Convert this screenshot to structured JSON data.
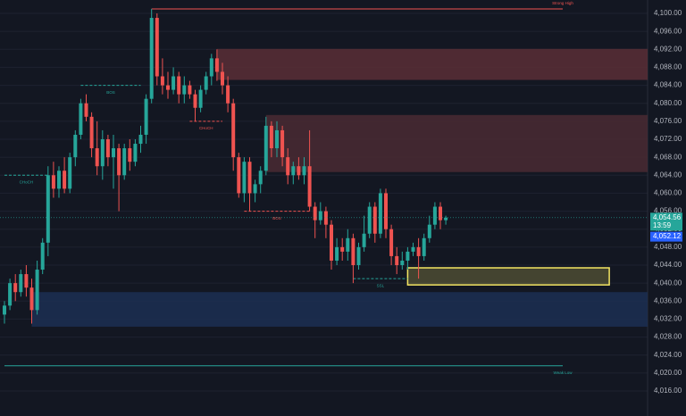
{
  "chart_data": {
    "type": "candlestick",
    "up_color": "#26a69a",
    "down_color": "#ef5350",
    "ylim": [
      4010.44,
      4102.98
    ],
    "yticks": [
      {
        "value": 4016,
        "label": "4,016.00"
      },
      {
        "value": 4020,
        "label": "4,020.00"
      },
      {
        "value": 4024,
        "label": "4,024.00"
      },
      {
        "value": 4028,
        "label": "4,028.00"
      },
      {
        "value": 4032,
        "label": "4,032.00"
      },
      {
        "value": 4036,
        "label": "4,036.00"
      },
      {
        "value": 4040,
        "label": "4,040.00"
      },
      {
        "value": 4044,
        "label": "4,044.00"
      },
      {
        "value": 4048,
        "label": "4,048.00"
      },
      {
        "value": 4052,
        "label": "4,052.00"
      },
      {
        "value": 4056,
        "label": "4,056.00"
      },
      {
        "value": 4060,
        "label": "4,060.00"
      },
      {
        "value": 4064,
        "label": "4,064.00"
      },
      {
        "value": 4068,
        "label": "4,068.00"
      },
      {
        "value": 4072,
        "label": "4,072.00"
      },
      {
        "value": 4076,
        "label": "4,076.00"
      },
      {
        "value": 4080,
        "label": "4,080.00"
      },
      {
        "value": 4084,
        "label": "4,084.00"
      },
      {
        "value": 4088,
        "label": "4,088.00"
      },
      {
        "value": 4092,
        "label": "4,092.00"
      },
      {
        "value": 4096,
        "label": "4,096.00"
      },
      {
        "value": 4100,
        "label": "4,100.00"
      }
    ],
    "grid": true,
    "open": [
      4033,
      4035,
      4040,
      4038,
      4042,
      4039,
      4034,
      4043,
      4049,
      4064,
      4061,
      4065,
      4061,
      4068,
      4073,
      4080,
      4077,
      4070,
      4066,
      4072,
      4068,
      4070,
      4064,
      4070,
      4067,
      4071,
      4073,
      4081,
      4099,
      4086,
      4084,
      4083,
      4086,
      4082,
      4084,
      4082,
      4079,
      4083,
      4086,
      4090,
      4087,
      4084,
      4080,
      4068,
      4060,
      4067,
      4060,
      4062,
      4065,
      4075,
      4070,
      4074,
      4068,
      4064,
      4066,
      4064,
      4066,
      4057,
      4054,
      4056,
      4053,
      4045,
      4048,
      4047,
      4050,
      4044,
      4048,
      4051,
      4057,
      4051,
      4060,
      4052,
      4046,
      4044,
      4045,
      4047,
      4048,
      4046,
      4050,
      4053,
      4057,
      4054
    ],
    "high": [
      4036,
      4041,
      4042,
      4043,
      4044,
      4041,
      4045,
      4050,
      4066,
      4067,
      4066,
      4068,
      4069,
      4074,
      4081,
      4082,
      4078,
      4076,
      4074,
      4073,
      4073,
      4071,
      4071,
      4072,
      4072,
      4075,
      4082,
      4101,
      4100,
      4090,
      4087,
      4088,
      4087,
      4086,
      4085,
      4083,
      4084,
      4087,
      4091,
      4092,
      4089,
      4086,
      4081,
      4069,
      4068,
      4068,
      4063,
      4066,
      4077,
      4076,
      4076,
      4075,
      4070,
      4067,
      4068,
      4068,
      4074,
      4058,
      4058,
      4057,
      4054,
      4050,
      4050,
      4052,
      4051,
      4049,
      4055,
      4058,
      4058,
      4061,
      4061,
      4053,
      4048,
      4047,
      4048,
      4049,
      4050,
      4051,
      4055,
      4058,
      4058,
      4055
    ],
    "low": [
      4031,
      4034,
      4036,
      4037,
      4037,
      4031,
      4033,
      4042,
      4046,
      4059,
      4059,
      4060,
      4060,
      4066,
      4072,
      4076,
      4068,
      4064,
      4063,
      4066,
      4061,
      4056,
      4063,
      4065,
      4066,
      4069,
      4071,
      4080,
      4084,
      4082,
      4081,
      4082,
      4080,
      4080,
      4081,
      4076,
      4078,
      4082,
      4084,
      4085,
      4082,
      4078,
      4065,
      4059,
      4058,
      4056,
      4058,
      4060,
      4064,
      4068,
      4068,
      4066,
      4062,
      4062,
      4063,
      4062,
      4056,
      4050,
      4053,
      4050,
      4043,
      4044,
      4045,
      4045,
      4040,
      4043,
      4047,
      4050,
      4049,
      4050,
      4050,
      4044,
      4042,
      4043,
      4043,
      4046,
      4041,
      4045,
      4049,
      4052,
      4052,
      4053
    ],
    "close": [
      4035,
      4040,
      4038,
      4042,
      4039,
      4034,
      4043,
      4049,
      4064,
      4061,
      4065,
      4061,
      4068,
      4073,
      4080,
      4077,
      4070,
      4066,
      4072,
      4068,
      4070,
      4064,
      4070,
      4067,
      4071,
      4073,
      4081,
      4099,
      4086,
      4084,
      4083,
      4086,
      4082,
      4084,
      4082,
      4079,
      4083,
      4086,
      4090,
      4087,
      4084,
      4080,
      4068,
      4060,
      4067,
      4060,
      4062,
      4065,
      4075,
      4070,
      4074,
      4068,
      4064,
      4066,
      4064,
      4066,
      4057,
      4054,
      4056,
      4053,
      4045,
      4048,
      4047,
      4050,
      4044,
      4048,
      4051,
      4057,
      4051,
      4060,
      4052,
      4046,
      4044,
      4045,
      4047,
      4048,
      4046,
      4050,
      4053,
      4057,
      4054,
      4054.56
    ],
    "zones": [
      {
        "from": 39,
        "top": 4092.1,
        "bottom": 4085.2,
        "color": "#5a2e36"
      },
      {
        "from": 48,
        "top": 4077.4,
        "bottom": 4064.7,
        "color": "#4a2a33"
      },
      {
        "from": 5,
        "top": 4038.0,
        "bottom": 4030.3,
        "color": "#1c2f52"
      }
    ],
    "highlight": {
      "from": 74,
      "to": 111,
      "top": 4043.4,
      "bottom": 4039.6,
      "color": "#f5e663"
    },
    "levels": [
      {
        "label": "Strong High",
        "value": 4101,
        "from": 27,
        "color": "#ef5350"
      },
      {
        "label": "BOS",
        "value": 4084,
        "from": 14,
        "to": 25,
        "color": "#26a69a"
      },
      {
        "label": "CHoCH",
        "value": 4064,
        "from": 0,
        "to": 8,
        "color": "#26a69a"
      },
      {
        "label": "CHoCH",
        "value": 4076,
        "from": 34,
        "to": 40,
        "color": "#ef5350"
      },
      {
        "label": "BOS",
        "value": 4056,
        "from": 44,
        "to": 56,
        "color": "#ef5350"
      },
      {
        "label": "SSL",
        "value": 4041,
        "from": 64,
        "to": 74,
        "color": "#26a69a"
      },
      {
        "label": "Weak Low",
        "value": 4021.6,
        "from": 0,
        "color": "#26a69a"
      }
    ],
    "last_price": {
      "value": 4054.56,
      "label": "4,054.56"
    },
    "countdown": "13:59",
    "bid_price": {
      "value": 4052.12,
      "label": "4,052.12"
    }
  }
}
